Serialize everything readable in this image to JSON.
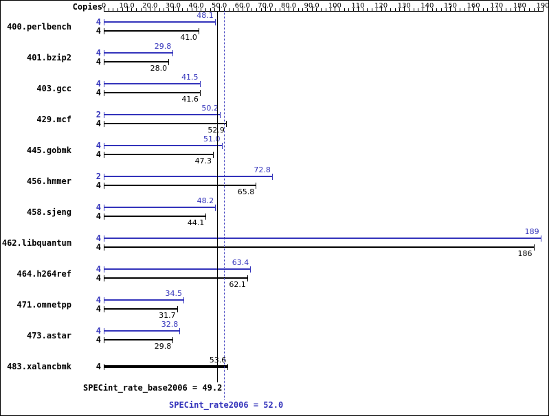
{
  "chart_data": {
    "type": "bar",
    "orientation": "horizontal",
    "x_axis": {
      "title": "Copies",
      "min": 0,
      "max": 190,
      "minor_tick_step": 2,
      "ticks": [
        {
          "value": 0,
          "label": "0"
        },
        {
          "value": 10,
          "label": "10.0"
        },
        {
          "value": 20,
          "label": "20.0"
        },
        {
          "value": 30,
          "label": "30.0"
        },
        {
          "value": 40,
          "label": "40.0"
        },
        {
          "value": 50,
          "label": "50.0"
        },
        {
          "value": 60,
          "label": "60.0"
        },
        {
          "value": 70,
          "label": "70.0"
        },
        {
          "value": 80,
          "label": "80.0"
        },
        {
          "value": 90,
          "label": "90.0"
        },
        {
          "value": 100,
          "label": "100"
        },
        {
          "value": 110,
          "label": "110"
        },
        {
          "value": 120,
          "label": "120"
        },
        {
          "value": 130,
          "label": "130"
        },
        {
          "value": 140,
          "label": "140"
        },
        {
          "value": 150,
          "label": "150"
        },
        {
          "value": 160,
          "label": "160"
        },
        {
          "value": 170,
          "label": "170"
        },
        {
          "value": 180,
          "label": "180"
        },
        {
          "value": 190,
          "label": "190"
        }
      ]
    },
    "series_colors": {
      "peak": "#3333bb",
      "base": "#000000"
    },
    "benchmarks": [
      {
        "name": "400.perlbench",
        "bars": [
          {
            "series": "peak",
            "copies": "4",
            "value": 48.1,
            "label": "48.1"
          },
          {
            "series": "base",
            "copies": "4",
            "value": 41.0,
            "label": "41.0"
          }
        ]
      },
      {
        "name": "401.bzip2",
        "bars": [
          {
            "series": "peak",
            "copies": "4",
            "value": 29.8,
            "label": "29.8"
          },
          {
            "series": "base",
            "copies": "4",
            "value": 28.0,
            "label": "28.0"
          }
        ]
      },
      {
        "name": "403.gcc",
        "bars": [
          {
            "series": "peak",
            "copies": "4",
            "value": 41.5,
            "label": "41.5"
          },
          {
            "series": "base",
            "copies": "4",
            "value": 41.6,
            "label": "41.6"
          }
        ]
      },
      {
        "name": "429.mcf",
        "bars": [
          {
            "series": "peak",
            "copies": "2",
            "value": 50.2,
            "label": "50.2"
          },
          {
            "series": "base",
            "copies": "4",
            "value": 52.9,
            "label": "52.9"
          }
        ]
      },
      {
        "name": "445.gobmk",
        "bars": [
          {
            "series": "peak",
            "copies": "4",
            "value": 51.0,
            "label": "51.0"
          },
          {
            "series": "base",
            "copies": "4",
            "value": 47.3,
            "label": "47.3"
          }
        ]
      },
      {
        "name": "456.hmmer",
        "bars": [
          {
            "series": "peak",
            "copies": "2",
            "value": 72.8,
            "label": "72.8"
          },
          {
            "series": "base",
            "copies": "4",
            "value": 65.8,
            "label": "65.8"
          }
        ]
      },
      {
        "name": "458.sjeng",
        "bars": [
          {
            "series": "peak",
            "copies": "4",
            "value": 48.2,
            "label": "48.2"
          },
          {
            "series": "base",
            "copies": "4",
            "value": 44.1,
            "label": "44.1"
          }
        ]
      },
      {
        "name": "462.libquantum",
        "bars": [
          {
            "series": "peak",
            "copies": "4",
            "value": 189,
            "label": "189"
          },
          {
            "series": "base",
            "copies": "4",
            "value": 186,
            "label": "186"
          }
        ]
      },
      {
        "name": "464.h264ref",
        "bars": [
          {
            "series": "peak",
            "copies": "4",
            "value": 63.4,
            "label": "63.4"
          },
          {
            "series": "base",
            "copies": "4",
            "value": 62.1,
            "label": "62.1"
          }
        ]
      },
      {
        "name": "471.omnetpp",
        "bars": [
          {
            "series": "peak",
            "copies": "4",
            "value": 34.5,
            "label": "34.5"
          },
          {
            "series": "base",
            "copies": "4",
            "value": 31.7,
            "label": "31.7"
          }
        ]
      },
      {
        "name": "473.astar",
        "bars": [
          {
            "series": "peak",
            "copies": "4",
            "value": 32.8,
            "label": "32.8"
          },
          {
            "series": "base",
            "copies": "4",
            "value": 29.8,
            "label": "29.8"
          }
        ]
      },
      {
        "name": "483.xalancbmk",
        "bars": [
          {
            "series": "base",
            "copies": "4",
            "value": 53.6,
            "label": "53.6"
          }
        ]
      }
    ],
    "reference_lines": [
      {
        "value": 49.2,
        "style": "solid",
        "color": "#000000"
      },
      {
        "value": 52.0,
        "style": "dotted",
        "color": "#3333bb"
      }
    ],
    "summary": {
      "base_text": "SPECint_rate_base2006 = 49.2",
      "peak_text": "SPECint_rate2006 = 52.0"
    }
  }
}
